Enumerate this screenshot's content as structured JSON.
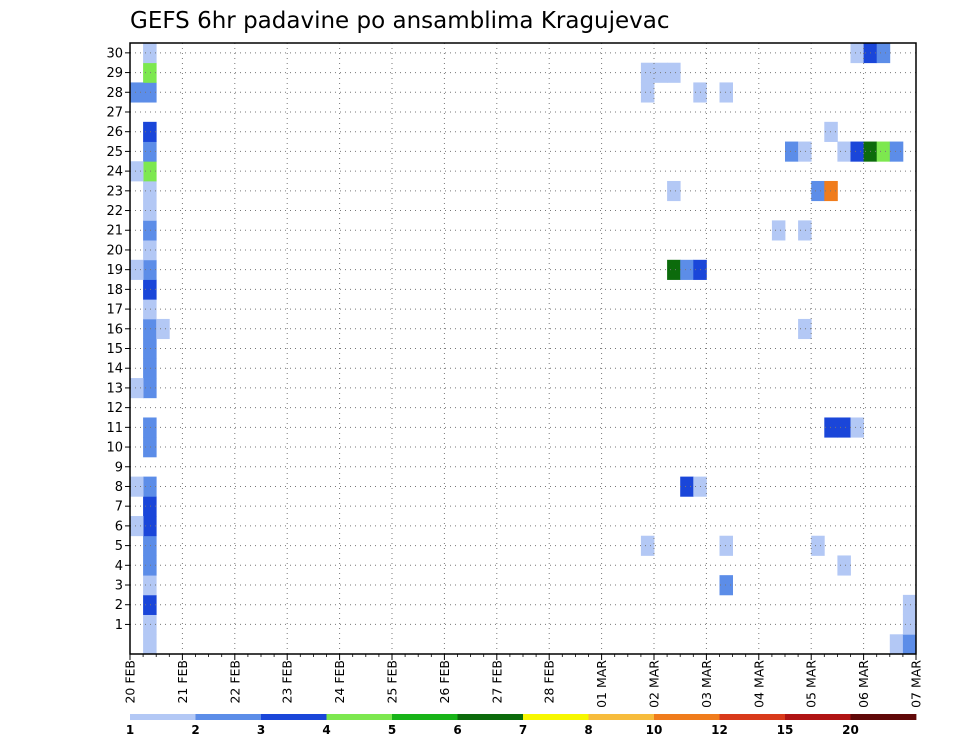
{
  "chart_data": {
    "type": "heatmap",
    "title": "GEFS 6hr padavine po ansamblima Kragujevac",
    "x_tick_labels": [
      "20 FEB",
      "21 FEB",
      "22 FEB",
      "23 FEB",
      "24 FEB",
      "25 FEB",
      "26 FEB",
      "27 FEB",
      "28 FEB",
      "01 MAR",
      "02 MAR",
      "03 MAR",
      "04 MAR",
      "05 MAR",
      "06 MAR",
      "07 MAR"
    ],
    "xlim_steps": [
      0,
      60
    ],
    "steps_per_day": 4,
    "y_tick_labels": [
      "1",
      "2",
      "3",
      "4",
      "5",
      "6",
      "7",
      "8",
      "9",
      "10",
      "11",
      "12",
      "13",
      "14",
      "15",
      "16",
      "17",
      "18",
      "19",
      "20",
      "21",
      "22",
      "23",
      "24",
      "25",
      "26",
      "27",
      "28",
      "29",
      "30"
    ],
    "ylim": [
      0,
      30
    ],
    "grid": true,
    "colorbar": {
      "levels": [
        "1",
        "2",
        "3",
        "4",
        "5",
        "6",
        "7",
        "8",
        "10",
        "12",
        "15",
        "20"
      ],
      "colors": [
        "#b3c8f5",
        "#5c8de8",
        "#1a46d9",
        "#7de84f",
        "#18b418",
        "#0c6b0c",
        "#f7f700",
        "#f7bc3c",
        "#f07c1c",
        "#d93a1a",
        "#b01414",
        "#600808"
      ]
    },
    "cells": [
      [
        1,
        0,
        "#b3c8f5"
      ],
      [
        1,
        1,
        "#b3c8f5"
      ],
      [
        1,
        2,
        "#1a46d9"
      ],
      [
        1,
        3,
        "#b3c8f5"
      ],
      [
        1,
        4,
        "#5c8de8"
      ],
      [
        1,
        5,
        "#5c8de8"
      ],
      [
        1,
        6,
        "#1a46d9"
      ],
      [
        1,
        7,
        "#1a46d9"
      ],
      [
        1,
        8,
        "#5c8de8"
      ],
      [
        1,
        10,
        "#5c8de8"
      ],
      [
        1,
        11,
        "#5c8de8"
      ],
      [
        1,
        13,
        "#5c8de8"
      ],
      [
        1,
        14,
        "#5c8de8"
      ],
      [
        1,
        15,
        "#5c8de8"
      ],
      [
        1,
        16,
        "#5c8de8"
      ],
      [
        1,
        17,
        "#b3c8f5"
      ],
      [
        1,
        18,
        "#1a46d9"
      ],
      [
        1,
        19,
        "#5c8de8"
      ],
      [
        1,
        20,
        "#b3c8f5"
      ],
      [
        1,
        21,
        "#5c8de8"
      ],
      [
        1,
        22,
        "#b3c8f5"
      ],
      [
        1,
        23,
        "#b3c8f5"
      ],
      [
        1,
        24,
        "#7de84f"
      ],
      [
        1,
        25,
        "#5c8de8"
      ],
      [
        1,
        26,
        "#1a46d9"
      ],
      [
        1,
        28,
        "#5c8de8"
      ],
      [
        1,
        29,
        "#7de84f"
      ],
      [
        1,
        30,
        "#b3c8f5"
      ],
      [
        0,
        6,
        "#b3c8f5"
      ],
      [
        0,
        8,
        "#b3c8f5"
      ],
      [
        0,
        13,
        "#b3c8f5"
      ],
      [
        0,
        19,
        "#b3c8f5"
      ],
      [
        0,
        24,
        "#b3c8f5"
      ],
      [
        0,
        28,
        "#5c8de8"
      ],
      [
        2,
        16,
        "#b3c8f5"
      ],
      [
        39,
        5,
        "#b3c8f5"
      ],
      [
        39,
        28,
        "#b3c8f5"
      ],
      [
        39,
        29,
        "#b3c8f5"
      ],
      [
        40,
        29,
        "#b3c8f5"
      ],
      [
        41,
        29,
        "#b3c8f5"
      ],
      [
        41,
        19,
        "#0c6b0c"
      ],
      [
        41,
        23,
        "#b3c8f5"
      ],
      [
        42,
        8,
        "#1a46d9"
      ],
      [
        42,
        19,
        "#5c8de8"
      ],
      [
        43,
        8,
        "#b3c8f5"
      ],
      [
        43,
        19,
        "#1a46d9"
      ],
      [
        43,
        28,
        "#b3c8f5"
      ],
      [
        45,
        3,
        "#5c8de8"
      ],
      [
        45,
        5,
        "#b3c8f5"
      ],
      [
        45,
        28,
        "#b3c8f5"
      ],
      [
        49,
        21,
        "#b3c8f5"
      ],
      [
        50,
        25,
        "#5c8de8"
      ],
      [
        51,
        16,
        "#b3c8f5"
      ],
      [
        51,
        21,
        "#b3c8f5"
      ],
      [
        51,
        25,
        "#b3c8f5"
      ],
      [
        52,
        5,
        "#b3c8f5"
      ],
      [
        52,
        23,
        "#5c8de8"
      ],
      [
        53,
        11,
        "#1a46d9"
      ],
      [
        53,
        23,
        "#f07c1c"
      ],
      [
        53,
        26,
        "#b3c8f5"
      ],
      [
        54,
        4,
        "#b3c8f5"
      ],
      [
        54,
        11,
        "#1a46d9"
      ],
      [
        54,
        25,
        "#b3c8f5"
      ],
      [
        55,
        11,
        "#b3c8f5"
      ],
      [
        55,
        25,
        "#1a46d9"
      ],
      [
        55,
        30,
        "#b3c8f5"
      ],
      [
        56,
        25,
        "#0c6b0c"
      ],
      [
        56,
        30,
        "#1a46d9"
      ],
      [
        57,
        25,
        "#7de84f"
      ],
      [
        57,
        30,
        "#5c8de8"
      ],
      [
        58,
        25,
        "#5c8de8"
      ],
      [
        58,
        0,
        "#b3c8f5"
      ],
      [
        59,
        0,
        "#5c8de8"
      ],
      [
        59,
        1,
        "#b3c8f5"
      ],
      [
        59,
        2,
        "#b3c8f5"
      ]
    ]
  }
}
